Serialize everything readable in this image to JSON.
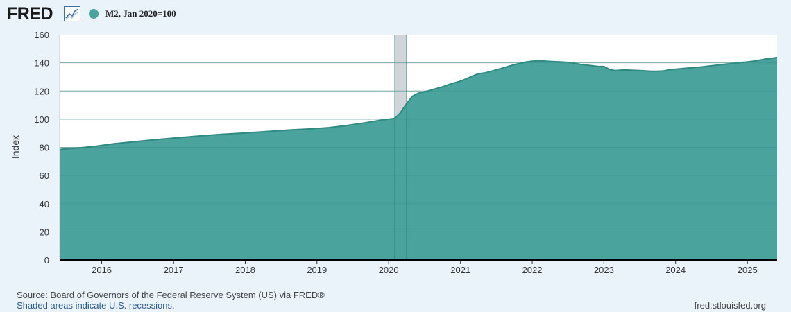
{
  "header": {
    "logo_text": "FRED",
    "logo_icon": "line-graph-icon",
    "legend_label": "M2, Jan 2020=100"
  },
  "colors": {
    "series": "#4aa39c",
    "series_line": "#2f8a82",
    "recession": "#c9cdd1",
    "background": "#eaf2fa",
    "plot": "#ffffff",
    "grid": "#d0d0d0"
  },
  "footer": {
    "source": "Source: Board of Governors of the Federal Reserve System (US) via FRED®",
    "recession_note": "Shaded areas indicate U.S. recessions.",
    "site": "fred.stlouisfed.org"
  },
  "chart_data": {
    "type": "area",
    "ylabel": "Index",
    "ylim": [
      0,
      160
    ],
    "yticks": [
      0,
      20,
      40,
      60,
      80,
      100,
      120,
      140,
      160
    ],
    "xlim": [
      "2015-06-01",
      "2025-06-01"
    ],
    "xticks": [
      "2016",
      "2017",
      "2018",
      "2019",
      "2020",
      "2021",
      "2022",
      "2023",
      "2024",
      "2025"
    ],
    "grid": true,
    "recessions": [
      {
        "start": "2020-02-01",
        "end": "2020-04-01"
      }
    ],
    "series": [
      {
        "name": "M2, Jan 2020=100",
        "x": [
          "2015-06-01",
          "2015-09-01",
          "2015-12-01",
          "2016-03-01",
          "2016-06-01",
          "2016-09-01",
          "2016-12-01",
          "2017-03-01",
          "2017-06-01",
          "2017-09-01",
          "2017-12-01",
          "2018-03-01",
          "2018-06-01",
          "2018-09-01",
          "2018-12-01",
          "2019-03-01",
          "2019-06-01",
          "2019-09-01",
          "2019-12-01",
          "2020-01-01",
          "2020-02-01",
          "2020-03-01",
          "2020-04-01",
          "2020-05-01",
          "2020-06-01",
          "2020-07-01",
          "2020-08-01",
          "2020-09-01",
          "2020-10-01",
          "2020-11-01",
          "2020-12-01",
          "2021-01-01",
          "2021-02-01",
          "2021-03-01",
          "2021-04-01",
          "2021-05-01",
          "2021-06-01",
          "2021-07-01",
          "2021-08-01",
          "2021-09-01",
          "2021-10-01",
          "2021-11-01",
          "2021-12-01",
          "2022-01-01",
          "2022-02-01",
          "2022-03-01",
          "2022-04-01",
          "2022-05-01",
          "2022-06-01",
          "2022-07-01",
          "2022-08-01",
          "2022-09-01",
          "2022-10-01",
          "2022-11-01",
          "2022-12-01",
          "2023-01-01",
          "2023-02-01",
          "2023-03-01",
          "2023-04-01",
          "2023-05-01",
          "2023-06-01",
          "2023-07-01",
          "2023-08-01",
          "2023-09-01",
          "2023-10-01",
          "2023-11-01",
          "2023-12-01",
          "2024-01-01",
          "2024-02-01",
          "2024-03-01",
          "2024-04-01",
          "2024-05-01",
          "2024-06-01",
          "2024-07-01",
          "2024-08-01",
          "2024-09-01",
          "2024-10-01",
          "2024-11-01",
          "2024-12-01",
          "2025-01-01",
          "2025-02-01",
          "2025-03-01",
          "2025-04-01",
          "2025-05-01",
          "2025-06-01"
        ],
        "y": [
          78.5,
          79.5,
          80.8,
          82.5,
          83.8,
          85.0,
          86.2,
          87.3,
          88.3,
          89.2,
          90.0,
          90.8,
          91.6,
          92.5,
          93.1,
          94.0,
          95.5,
          97.4,
          99.5,
          100.0,
          100.6,
          104.5,
          111.0,
          116.3,
          118.5,
          119.5,
          120.5,
          121.8,
          123.0,
          124.5,
          125.8,
          127.0,
          128.8,
          130.5,
          132.3,
          132.8,
          133.8,
          135.0,
          136.2,
          137.5,
          138.7,
          139.6,
          140.6,
          141.2,
          141.5,
          141.3,
          141.0,
          140.8,
          140.6,
          140.3,
          139.8,
          139.0,
          138.5,
          138.0,
          137.5,
          137.4,
          135.2,
          134.5,
          134.9,
          134.9,
          134.7,
          134.5,
          134.3,
          134.0,
          134.0,
          134.3,
          135.0,
          135.5,
          135.9,
          136.2,
          136.6,
          136.9,
          137.4,
          137.9,
          138.4,
          138.9,
          139.3,
          139.8,
          140.3,
          140.7,
          141.2,
          141.9,
          142.6,
          143.1,
          143.8
        ]
      }
    ]
  }
}
